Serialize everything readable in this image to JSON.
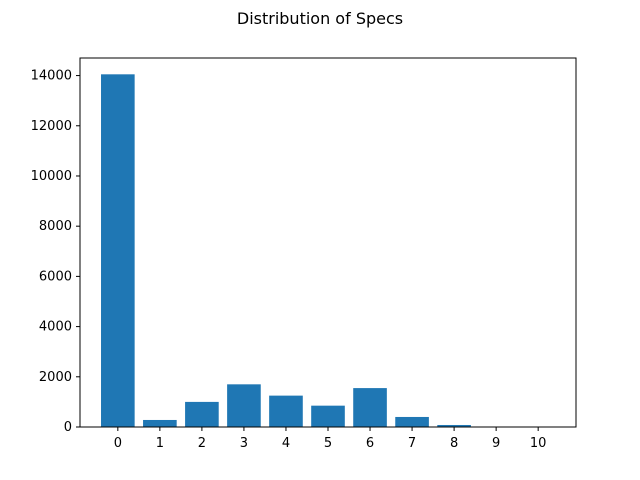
{
  "chart_data": {
    "type": "bar",
    "title": "Distribution of Specs",
    "xlabel": "",
    "ylabel": "",
    "categories": [
      "0",
      "1",
      "2",
      "3",
      "4",
      "5",
      "6",
      "7",
      "8",
      "9",
      "10"
    ],
    "values": [
      14050,
      280,
      1000,
      1700,
      1250,
      850,
      1550,
      400,
      80,
      10,
      5
    ],
    "ylim": [
      0,
      14700
    ],
    "yticks": [
      0,
      2000,
      4000,
      6000,
      8000,
      10000,
      12000,
      14000
    ],
    "grid": false,
    "bar_color": "#1f77b4"
  }
}
